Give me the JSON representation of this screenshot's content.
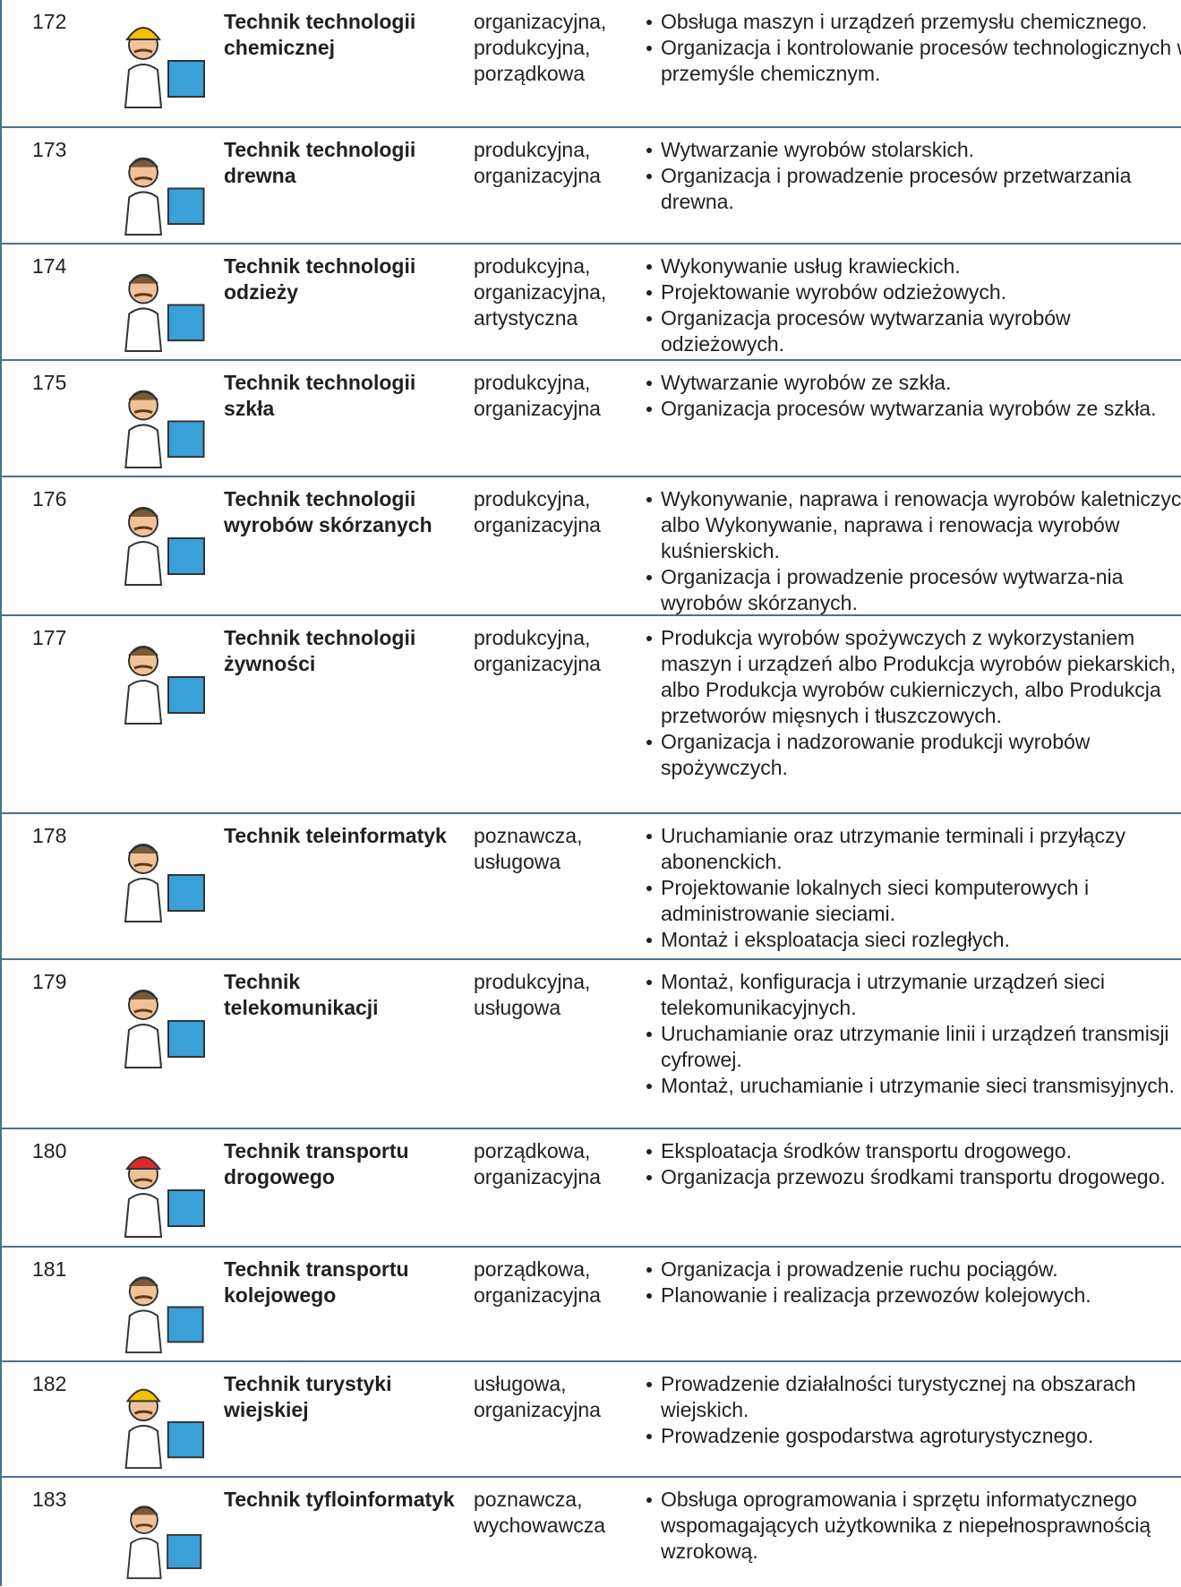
{
  "table": {
    "rows": [
      {
        "number": "172",
        "name": "Technik technologii chemicznej",
        "areas": "organizacyjna, produkcyjna, porządkowa",
        "tasks": [
          "Obsługa maszyn i urządzeń przemysłu chemicznego.",
          "Organizacja i kontrolowanie procesów technologicznych w przemyśle chemicznym."
        ]
      },
      {
        "number": "173",
        "name": "Technik technologii drewna",
        "areas": "produkcyjna, organizacyjna",
        "tasks": [
          "Wytwarzanie wyrobów stolarskich.",
          "Organizacja i prowadzenie procesów przetwarzania drewna."
        ]
      },
      {
        "number": "174",
        "name": "Technik technologii odzieży",
        "areas": "produkcyjna, organizacyjna, artystyczna",
        "tasks": [
          "Wykonywanie usług krawieckich.",
          "Projektowanie wyrobów odzieżowych.",
          "Organizacja procesów wytwarzania wyrobów odzieżowych."
        ]
      },
      {
        "number": "175",
        "name": "Technik technologii szkła",
        "areas": "produkcyjna, organizacyjna",
        "tasks": [
          "Wytwarzanie wyrobów ze szkła.",
          "Organizacja procesów wytwarzania wyrobów ze szkła."
        ]
      },
      {
        "number": "176",
        "name": "Technik technologii wyrobów skórzanych",
        "areas": "produkcyjna, organizacyjna",
        "tasks": [
          "Wykonywanie, naprawa i renowacja wyrobów kaletniczych albo Wykonywanie, naprawa i renowacja wyrobów kuśnierskich.",
          "Organizacja i prowadzenie procesów wytwarza-nia wyrobów skórzanych."
        ]
      },
      {
        "number": "177",
        "name": "Technik technologii żywności",
        "areas": "produkcyjna, organizacyjna",
        "tasks": [
          "Produkcja wyrobów spożywczych z wykorzystaniem maszyn i urządzeń albo Produkcja wyrobów piekarskich, albo Produkcja wyrobów cukierniczych, albo Produkcja przetworów mięsnych i tłuszczowych.",
          "Organizacja i nadzorowanie produkcji wyrobów spożywczych."
        ]
      },
      {
        "number": "178",
        "name": "Technik teleinformatyk",
        "areas": "poznawcza, usługowa",
        "tasks": [
          "Uruchamianie oraz utrzymanie terminali i przyłączy abonenckich.",
          "Projektowanie lokalnych sieci komputerowych i administrowanie sieciami.",
          "Montaż i eksploatacja sieci rozległych."
        ]
      },
      {
        "number": "179",
        "name": "Technik telekomunikacji",
        "areas": "produkcyjna, usługowa",
        "tasks": [
          "Montaż, konfiguracja i utrzymanie urządzeń sieci telekomunikacyjnych.",
          "Uruchamianie oraz utrzymanie linii i urządzeń transmisji cyfrowej.",
          "Montaż, uruchamianie i utrzymanie sieci transmisyjnych."
        ]
      },
      {
        "number": "180",
        "name": "Technik transportu drogowego",
        "areas": "porządkowa, organizacyjna",
        "tasks": [
          "Eksploatacja środków transportu drogowego.",
          "Organizacja przewozu środkami transportu drogowego."
        ]
      },
      {
        "number": "181",
        "name": "Technik transportu kolejowego",
        "areas": "porządkowa, organizacyjna",
        "tasks": [
          "Organizacja i prowadzenie ruchu pociągów.",
          "Planowanie i realizacja przewozów kolejowych."
        ]
      },
      {
        "number": "182",
        "name": "Technik turystyki wiejskiej",
        "areas": "usługowa, organizacyjna",
        "tasks": [
          "Prowadzenie działalności turystycznej na obszarach wiejskich.",
          "Prowadzenie gospodarstwa agroturystycznego."
        ]
      },
      {
        "number": "183",
        "name": "Technik tyfloinformatyk",
        "areas": "poznawcza, wychowawcza",
        "tasks": [
          "Obsługa oprogramowania i sprzętu informatycznego wspomagających użytkownika z niepełnosprawnością wzrokową."
        ]
      }
    ]
  }
}
